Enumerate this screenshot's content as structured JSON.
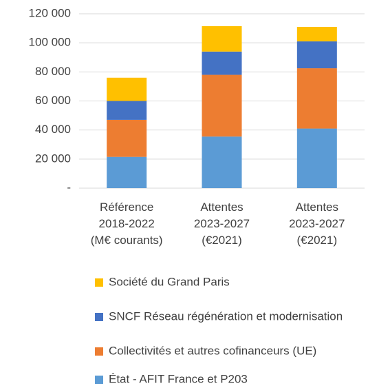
{
  "chart_data": {
    "type": "stacked_bar",
    "categories": [
      "Référence\n2018-2022\n(M€ courants)",
      "Attentes\n2023-2027\n(€2021)",
      "Attentes\n2023-2027\n(€2021)"
    ],
    "series": [
      {
        "name": "État - AFIT France et P203",
        "color": "#5b9bd5",
        "values": [
          21500,
          35500,
          41000
        ]
      },
      {
        "name": "Collectivités et autres cofinanceurs (UE)",
        "color": "#ed7d31",
        "values": [
          25500,
          42500,
          41500
        ]
      },
      {
        "name": "SNCF Réseau régénération et modernisation",
        "color": "#4472c4",
        "values": [
          13000,
          16000,
          18500
        ]
      },
      {
        "name": "Société du Grand Paris",
        "color": "#ffc000",
        "values": [
          16000,
          17500,
          10000
        ]
      }
    ],
    "ylim": [
      0,
      120000
    ],
    "yticks": [
      {
        "value": 0,
        "label": "-"
      },
      {
        "value": 20000,
        "label": "20 000"
      },
      {
        "value": 40000,
        "label": "40 000"
      },
      {
        "value": 60000,
        "label": "60 000"
      },
      {
        "value": 80000,
        "label": "80 000"
      },
      {
        "value": 100000,
        "label": "100 000"
      },
      {
        "value": 120000,
        "label": "120 000"
      }
    ],
    "grid": true
  }
}
